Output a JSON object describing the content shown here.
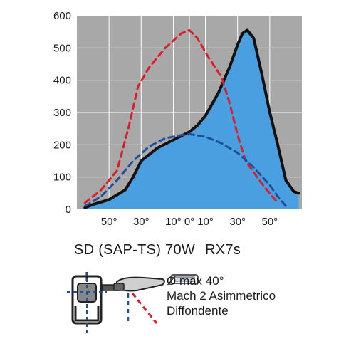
{
  "chart_data": {
    "type": "line",
    "title": "",
    "xlabel": "",
    "ylabel": "",
    "ylim": [
      0,
      600
    ],
    "y_ticks": [
      0,
      100,
      200,
      300,
      400,
      500,
      600
    ],
    "x_tick_labels": [
      "50°",
      "30°",
      "10°",
      "0°",
      "10°",
      "30°",
      "50°"
    ],
    "plot_background": "#a8a8a8",
    "grid": true,
    "xlim": [
      -70,
      70
    ],
    "x_tick_angles": [
      -50,
      -30,
      -10,
      0,
      10,
      30,
      50
    ],
    "series": [
      {
        "style": "solid",
        "color": "#111111",
        "fill": "#4a9fe0",
        "points": [
          [
            -65,
            5
          ],
          [
            -60,
            15
          ],
          [
            -50,
            30
          ],
          [
            -40,
            60
          ],
          [
            -35,
            100
          ],
          [
            -30,
            150
          ],
          [
            -20,
            190
          ],
          [
            -10,
            215
          ],
          [
            0,
            240
          ],
          [
            5,
            260
          ],
          [
            10,
            290
          ],
          [
            18,
            360
          ],
          [
            25,
            440
          ],
          [
            30,
            510
          ],
          [
            33,
            545
          ],
          [
            36,
            555
          ],
          [
            40,
            530
          ],
          [
            45,
            420
          ],
          [
            50,
            300
          ],
          [
            55,
            200
          ],
          [
            60,
            90
          ],
          [
            65,
            55
          ],
          [
            68,
            50
          ]
        ]
      },
      {
        "style": "dashed",
        "color": "#d8202a",
        "points": [
          [
            -65,
            20
          ],
          [
            -55,
            60
          ],
          [
            -45,
            120
          ],
          [
            -38,
            250
          ],
          [
            -32,
            380
          ],
          [
            -25,
            440
          ],
          [
            -15,
            500
          ],
          [
            -5,
            545
          ],
          [
            0,
            555
          ],
          [
            5,
            530
          ],
          [
            12,
            470
          ],
          [
            20,
            410
          ],
          [
            25,
            330
          ],
          [
            30,
            230
          ],
          [
            35,
            150
          ],
          [
            45,
            80
          ],
          [
            55,
            20
          ]
        ]
      },
      {
        "style": "dashed",
        "color": "#1e4f9a",
        "points": [
          [
            -65,
            10
          ],
          [
            -55,
            40
          ],
          [
            -45,
            90
          ],
          [
            -35,
            150
          ],
          [
            -25,
            195
          ],
          [
            -15,
            220
          ],
          [
            -5,
            230
          ],
          [
            0,
            233
          ],
          [
            10,
            225
          ],
          [
            20,
            205
          ],
          [
            30,
            175
          ],
          [
            40,
            130
          ],
          [
            50,
            75
          ],
          [
            55,
            40
          ],
          [
            60,
            10
          ]
        ]
      }
    ]
  },
  "product": {
    "parts": [
      "SD",
      "(SAP-TS)",
      "70W",
      "RX7s"
    ]
  },
  "legend": {
    "lines": [
      "Ø max 40°",
      "Mach 2 Asimmetrico",
      "Diffondente"
    ]
  },
  "colors": {
    "red_dash": "#d8202a",
    "blue_dash": "#1e4f9a",
    "fill": "#4a9fe0"
  }
}
